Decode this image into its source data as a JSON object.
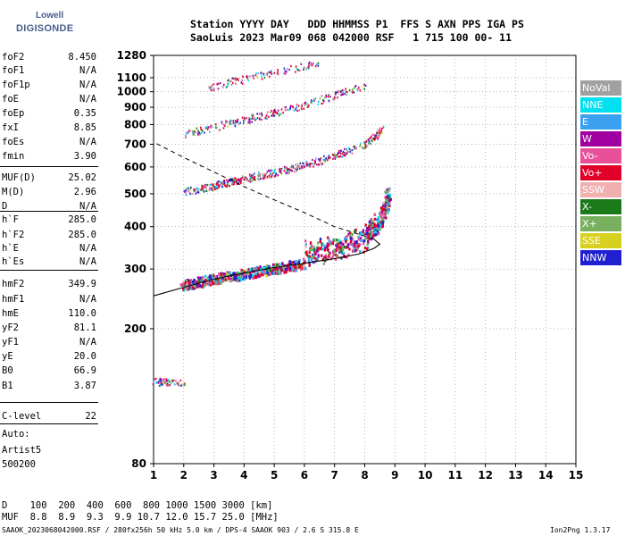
{
  "logo": {
    "line1": "Lowell",
    "line2": "DIGISONDE"
  },
  "header": {
    "line1": "Station YYYY DAY   DDD HHMMSS P1  FFS S AXN PPS IGA PS",
    "line2": "SaoLuis 2023 Mar09 068 042000 RSF   1 715 100 00- 11"
  },
  "params": [
    {
      "k": "foF2",
      "v": "8.450"
    },
    {
      "k": "foF1",
      "v": "N/A"
    },
    {
      "k": "foF1p",
      "v": "N/A"
    },
    {
      "k": "foE",
      "v": "N/A"
    },
    {
      "k": "foEp",
      "v": "0.35"
    },
    {
      "k": "fxI",
      "v": "8.85"
    },
    {
      "k": "foEs",
      "v": "N/A"
    },
    {
      "k": "fmin",
      "v": "3.90"
    },
    {
      "k": "MUF(D)",
      "v": "25.02"
    },
    {
      "k": "M(D)",
      "v": "2.96"
    },
    {
      "k": "D",
      "v": "N/A"
    },
    {
      "k": "h`F",
      "v": "285.0"
    },
    {
      "k": "h`F2",
      "v": "285.0"
    },
    {
      "k": "h`E",
      "v": "N/A"
    },
    {
      "k": "h`Es",
      "v": "N/A"
    },
    {
      "k": "hmF2",
      "v": "349.9"
    },
    {
      "k": "hmF1",
      "v": "N/A"
    },
    {
      "k": "hmE",
      "v": "110.0"
    },
    {
      "k": "yF2",
      "v": "81.1"
    },
    {
      "k": "yF1",
      "v": "N/A"
    },
    {
      "k": "yE",
      "v": "20.0"
    },
    {
      "k": "B0",
      "v": "66.9"
    },
    {
      "k": "B1",
      "v": "3.87"
    },
    {
      "k": "C-level",
      "v": "22"
    }
  ],
  "auto": {
    "l1": "Auto:",
    "l2": "Artist5",
    "l3": "500200"
  },
  "legend": [
    {
      "label": "NoVal",
      "color": "#a0a0a0"
    },
    {
      "label": "NNE",
      "color": "#00e0f0"
    },
    {
      "label": "E",
      "color": "#3ca0f0"
    },
    {
      "label": "W",
      "color": "#a000a0"
    },
    {
      "label": "Vo-",
      "color": "#e8509a"
    },
    {
      "label": "Vo+",
      "color": "#e00028"
    },
    {
      "label": "SSW",
      "color": "#f0b0b0"
    },
    {
      "label": "X-",
      "color": "#1a7a1a"
    },
    {
      "label": "X+",
      "color": "#78b060"
    },
    {
      "label": "SSE",
      "color": "#d8d020"
    },
    {
      "label": "NNW",
      "color": "#2020d0"
    }
  ],
  "footer": {
    "d_row": "D    100  200  400  600  800 1000 1500 3000 [km]",
    "muf_row": "MUF  8.8  8.9  9.3  9.9 10.7 12.0 15.7 25.0 [MHz]",
    "bottom_left": "SAAOK_2023068042000.RSF / 280fx256h 50 kHz 5.0 km / DPS-4 SAAOK 903 / 2.6 S 315.8 E",
    "bottom_right": "Ion2Png 1.3.17"
  },
  "chart_data": {
    "type": "scatter",
    "title": "",
    "xlabel": "",
    "ylabel": "",
    "xlim": [
      1,
      15
    ],
    "ylim": [
      80,
      1280
    ],
    "yscale": "log",
    "x_ticks": [
      "1",
      "2",
      "3",
      "4",
      "5",
      "6",
      "7",
      "8",
      "9",
      "10",
      "11",
      "12",
      "13",
      "14",
      "15"
    ],
    "y_ticks": [
      "80",
      "200",
      "300",
      "400",
      "500",
      "600",
      "700",
      "800",
      "900",
      "1000",
      "1100",
      "1280"
    ],
    "grid": "dotted",
    "series": [
      {
        "values": [
          [
            1.9,
            270
          ],
          [
            3,
            282
          ],
          [
            4,
            292
          ],
          [
            5,
            302
          ],
          [
            6,
            314
          ],
          [
            7,
            328
          ],
          [
            8,
            352
          ],
          [
            8.5,
            400
          ],
          [
            8.8,
            470
          ]
        ]
      },
      {
        "values": [
          [
            2,
            510
          ],
          [
            3,
            530
          ],
          [
            4,
            555
          ],
          [
            5,
            580
          ],
          [
            6,
            610
          ],
          [
            7,
            650
          ],
          [
            8,
            700
          ],
          [
            8.6,
            780
          ]
        ]
      },
      {
        "values": [
          [
            2,
            750
          ],
          [
            3,
            790
          ],
          [
            4,
            830
          ],
          [
            5,
            870
          ],
          [
            6,
            920
          ],
          [
            7,
            980
          ],
          [
            8,
            1050
          ]
        ]
      },
      {
        "values": [
          [
            2.7,
            1020
          ],
          [
            3.5,
            1070
          ],
          [
            4.5,
            1120
          ],
          [
            5.5,
            1170
          ],
          [
            6.5,
            1220
          ]
        ]
      },
      {
        "values": [
          [
            1,
            140
          ],
          [
            2,
            140
          ]
        ]
      }
    ],
    "profile_curve": [
      [
        1,
        250
      ],
      [
        2,
        265
      ],
      [
        3,
        280
      ],
      [
        4,
        292
      ],
      [
        5,
        303
      ],
      [
        6,
        312
      ],
      [
        7,
        322
      ],
      [
        7.8,
        332
      ],
      [
        8.3,
        345
      ],
      [
        8.5,
        355
      ],
      [
        8.3,
        368
      ],
      [
        7.8,
        380
      ],
      [
        7,
        400
      ],
      [
        6,
        440
      ],
      [
        5,
        480
      ],
      [
        4,
        525
      ],
      [
        3,
        580
      ],
      [
        2,
        640
      ],
      [
        1,
        710
      ]
    ]
  }
}
